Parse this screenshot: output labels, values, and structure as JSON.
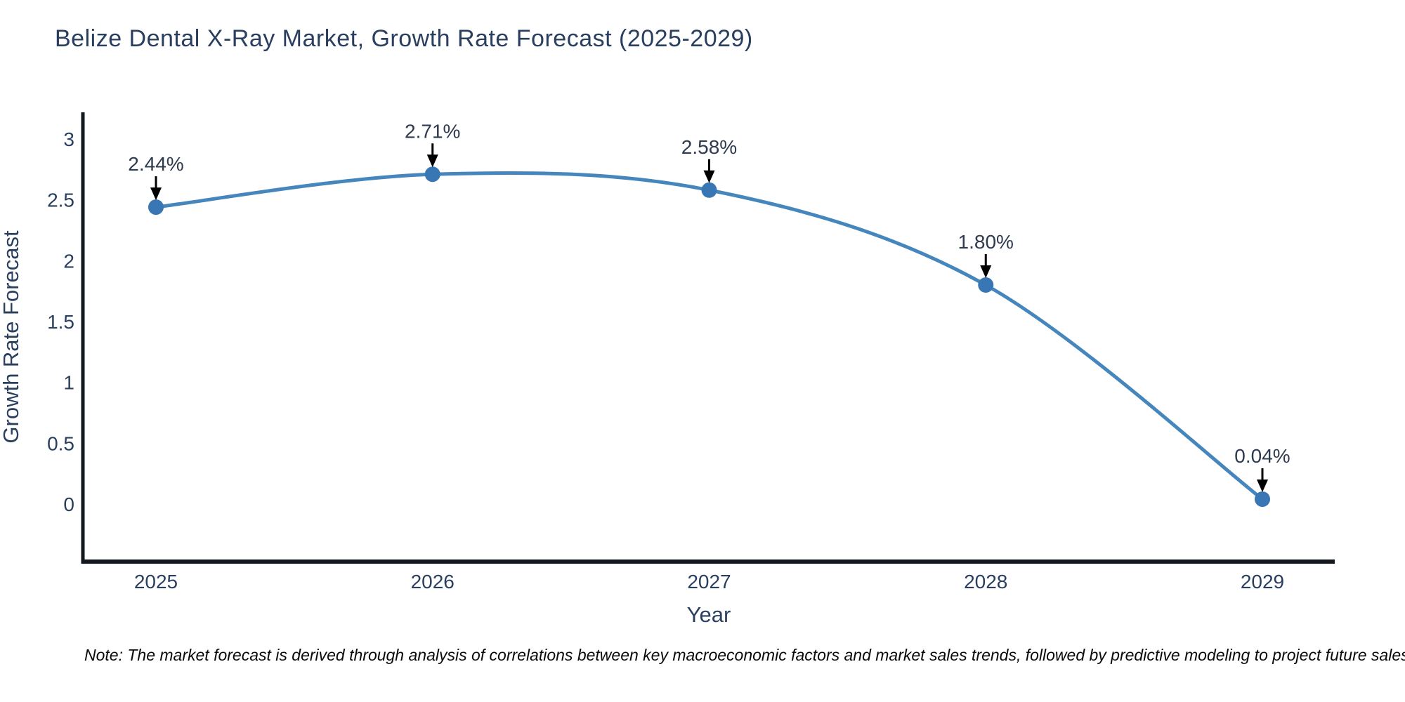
{
  "chart_data": {
    "type": "line",
    "title": "Belize Dental X-Ray Market, Growth Rate Forecast (2025-2029)",
    "xlabel": "Year",
    "ylabel": "Growth Rate Forecast",
    "categories": [
      "2025",
      "2026",
      "2027",
      "2028",
      "2029"
    ],
    "series": [
      {
        "name": "Growth Rate Forecast",
        "values": [
          2.44,
          2.71,
          2.58,
          1.8,
          0.04
        ],
        "point_labels": [
          "2.44%",
          "2.71%",
          "2.58%",
          "1.80%",
          "0.04%"
        ]
      }
    ],
    "yticks": [
      "0",
      "0.5",
      "1",
      "1.5",
      "2",
      "2.5",
      "3"
    ],
    "ylim": [
      -0.5,
      3.2
    ],
    "grid": false,
    "legend": "none",
    "line_shape": "spline",
    "annotations": "black arrows pointing down from value labels to markers",
    "note": "Note: The market forecast is derived through analysis of correlations between key macroeconomic factors and market sales trends, followed by predictive modeling to project future sales",
    "colors": {
      "line": "#4586bd",
      "marker": "#3876b4",
      "axis": "#13181e",
      "text": "#2a3f5f",
      "annotation_text": "#2e3a4e",
      "arrow": "#000000",
      "note_text": "#0a0a0a",
      "background": "#ffffff"
    }
  }
}
